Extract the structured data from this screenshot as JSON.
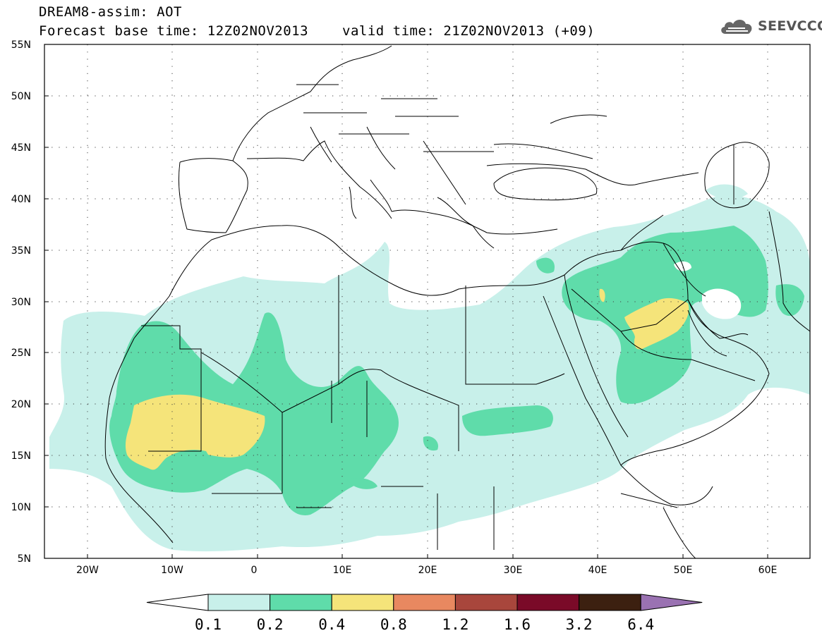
{
  "header": {
    "line1": "DREAM8-assim: AOT",
    "line2_base": "Forecast base time: 12Z02NOV2013",
    "line2_valid": "valid time: 21Z02NOV2013 (+09)"
  },
  "logo": {
    "icon": "cloud-icon",
    "text": "SEEVCCC"
  },
  "map": {
    "variable": "AOT",
    "lon_range": [
      -25,
      65
    ],
    "lat_range": [
      5,
      55
    ],
    "lat_ticks": [
      "55N",
      "50N",
      "45N",
      "40N",
      "35N",
      "30N",
      "25N",
      "20N",
      "15N",
      "10N",
      "5N"
    ],
    "lon_ticks": [
      "20W",
      "10W",
      "0",
      "10E",
      "20E",
      "30E",
      "40E",
      "50E",
      "60E"
    ],
    "grid": "dotted"
  },
  "colorbar": {
    "labels": [
      "0.1",
      "0.2",
      "0.4",
      "0.8",
      "1.2",
      "1.6",
      "3.2",
      "6.4"
    ],
    "colors": [
      "#ffffff",
      "#c8f0ea",
      "#5fdcaa",
      "#f5e47a",
      "#e88860",
      "#a8463c",
      "#7a0a28",
      "#3c2010",
      "#9a72b2"
    ]
  }
}
